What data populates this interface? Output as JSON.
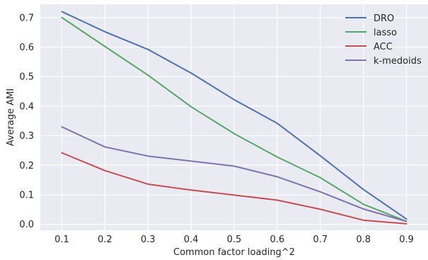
{
  "chart_data": {
    "type": "line",
    "title": "",
    "xlabel": "Common factor loading^2",
    "ylabel": "Average AMI",
    "x": [
      0.1,
      0.2,
      0.3,
      0.4,
      0.5,
      0.6,
      0.7,
      0.8,
      0.9
    ],
    "x_tick_labels": [
      "0.1",
      "0.2",
      "0.3",
      "0.4",
      "0.5",
      "0.6",
      "0.7",
      "0.8",
      "0.9"
    ],
    "y_tick_labels": [
      "0.0",
      "0.1",
      "0.2",
      "0.3",
      "0.4",
      "0.5",
      "0.6",
      "0.7"
    ],
    "y_ticks": [
      0.0,
      0.1,
      0.2,
      0.3,
      0.4,
      0.5,
      0.6,
      0.7
    ],
    "xlim": [
      0.05,
      0.95
    ],
    "ylim": [
      -0.02,
      0.745
    ],
    "grid": true,
    "legend_position": "top-right",
    "background": "#EAEAF2",
    "series": [
      {
        "name": "DRO",
        "color": "#4C72B0",
        "values": [
          0.72,
          0.652,
          0.592,
          0.512,
          0.422,
          0.342,
          0.232,
          0.118,
          0.018
        ]
      },
      {
        "name": "lasso",
        "color": "#55A868",
        "values": [
          0.7,
          0.602,
          0.505,
          0.398,
          0.307,
          0.228,
          0.158,
          0.068,
          0.01
        ]
      },
      {
        "name": "ACC",
        "color": "#C44E52",
        "values": [
          0.242,
          0.182,
          0.136,
          0.116,
          0.099,
          0.082,
          0.051,
          0.014,
          0.002
        ]
      },
      {
        "name": "k-medoids",
        "color": "#8172B2",
        "values": [
          0.33,
          0.262,
          0.231,
          0.214,
          0.197,
          0.161,
          0.11,
          0.052,
          0.01
        ]
      }
    ]
  }
}
